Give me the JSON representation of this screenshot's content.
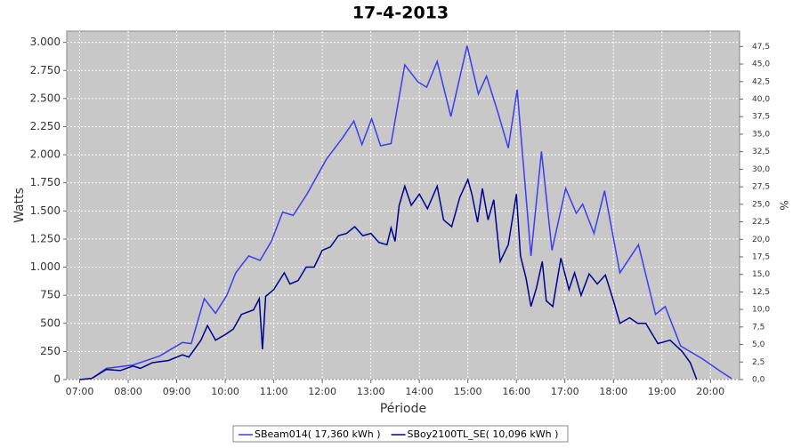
{
  "chart_data": {
    "type": "line",
    "title": "17-4-2013",
    "xlabel": "Période",
    "ylabel": "Watts",
    "y2label": "%",
    "xlim": [
      "06:44",
      "20:36"
    ],
    "xticks": [
      "07:00",
      "08:00",
      "09:00",
      "10:00",
      "11:00",
      "12:00",
      "13:00",
      "14:00",
      "15:00",
      "16:00",
      "17:00",
      "18:00",
      "19:00",
      "20:00"
    ],
    "ylim": [
      0,
      3100
    ],
    "yticks": [
      0,
      250,
      500,
      750,
      {
        "value": 1000,
        "label": "1.000"
      },
      {
        "value": 1250,
        "label": "1.250"
      },
      {
        "value": 1500,
        "label": "1.500"
      },
      {
        "value": 1750,
        "label": "1.750"
      },
      {
        "value": 2000,
        "label": "2.000"
      },
      {
        "value": 2250,
        "label": "2.250"
      },
      {
        "value": 2500,
        "label": "2.500"
      },
      {
        "value": 2750,
        "label": "2.750"
      },
      {
        "value": 3000,
        "label": "3.000"
      }
    ],
    "y2lim": [
      0,
      49.7
    ],
    "y2ticks": [
      {
        "value": 0,
        "label": "0,0"
      },
      {
        "value": 2.5,
        "label": "2,5"
      },
      {
        "value": 5,
        "label": "5,0"
      },
      {
        "value": 7.5,
        "label": "7,5"
      },
      {
        "value": 10,
        "label": "10,0"
      },
      {
        "value": 12.5,
        "label": "12,5"
      },
      {
        "value": 15,
        "label": "15,0"
      },
      {
        "value": 17.5,
        "label": "17,5"
      },
      {
        "value": 20,
        "label": "20,0"
      },
      {
        "value": 22.5,
        "label": "22,5"
      },
      {
        "value": 25,
        "label": "25,0"
      },
      {
        "value": 27.5,
        "label": "27,5"
      },
      {
        "value": 30,
        "label": "30,0"
      },
      {
        "value": 32.5,
        "label": "32,5"
      },
      {
        "value": 35,
        "label": "35,0"
      },
      {
        "value": 37.5,
        "label": "37,5"
      },
      {
        "value": 40,
        "label": "40,0"
      },
      {
        "value": 42.5,
        "label": "42,5"
      },
      {
        "value": 45,
        "label": "45,0"
      },
      {
        "value": 47.5,
        "label": "47,5"
      }
    ],
    "grid": true,
    "series": [
      {
        "name": "SBeam014( 17,360 kWh )",
        "color": "#3c3cf0",
        "x": [
          "07:00",
          "07:15",
          "07:33",
          "08:06",
          "08:39",
          "09:07",
          "09:18",
          "09:34",
          "09:48",
          "10:02",
          "10:13",
          "10:29",
          "10:43",
          "10:57",
          "11:11",
          "11:24",
          "11:41",
          "12:05",
          "12:25",
          "12:39",
          "12:49",
          "13:01",
          "13:12",
          "13:25",
          "13:42",
          "13:58",
          "14:09",
          "14:22",
          "14:39",
          "14:59",
          "15:13",
          "15:23",
          "15:37",
          "15:50",
          "16:01",
          "16:18",
          "16:31",
          "16:44",
          "17:01",
          "17:14",
          "17:22",
          "17:36",
          "17:49",
          "18:08",
          "18:31",
          "18:52",
          "19:04",
          "19:23",
          "19:51",
          "20:13",
          "20:26"
        ],
        "values": [
          0,
          10,
          100,
          130,
          210,
          330,
          320,
          720,
          590,
          750,
          950,
          1100,
          1060,
          1230,
          1490,
          1460,
          1650,
          1960,
          2150,
          2300,
          2090,
          2320,
          2080,
          2100,
          2800,
          2650,
          2600,
          2830,
          2340,
          2970,
          2540,
          2700,
          2380,
          2060,
          2580,
          1100,
          2030,
          1150,
          1700,
          1480,
          1560,
          1300,
          1680,
          950,
          1200,
          580,
          650,
          300,
          180,
          70,
          10
        ]
      },
      {
        "name": "SBoy2100TL_SE( 10,096 kWh )",
        "color": "#000090",
        "x": [
          "07:00",
          "07:15",
          "07:33",
          "07:50",
          "08:06",
          "08:15",
          "08:30",
          "08:50",
          "09:07",
          "09:15",
          "09:30",
          "09:38",
          "09:48",
          "10:00",
          "10:10",
          "10:20",
          "10:35",
          "10:42",
          "10:46",
          "10:50",
          "11:00",
          "11:13",
          "11:20",
          "11:30",
          "11:40",
          "11:50",
          "12:00",
          "12:10",
          "12:20",
          "12:30",
          "12:40",
          "12:50",
          "13:00",
          "13:10",
          "13:20",
          "13:25",
          "13:30",
          "13:35",
          "13:42",
          "13:50",
          "14:00",
          "14:10",
          "14:22",
          "14:30",
          "14:40",
          "14:50",
          "15:00",
          "15:05",
          "15:12",
          "15:18",
          "15:25",
          "15:32",
          "15:40",
          "15:50",
          "16:00",
          "16:05",
          "16:12",
          "16:18",
          "16:25",
          "16:32",
          "16:37",
          "16:45",
          "16:55",
          "17:05",
          "17:12",
          "17:20",
          "17:30",
          "17:40",
          "17:50",
          "18:00",
          "18:08",
          "18:20",
          "18:30",
          "18:40",
          "18:55",
          "19:10",
          "19:25",
          "19:35",
          "19:43"
        ],
        "values": [
          0,
          10,
          90,
          80,
          120,
          100,
          150,
          170,
          220,
          200,
          350,
          480,
          350,
          400,
          450,
          580,
          620,
          720,
          270,
          740,
          800,
          950,
          850,
          880,
          1000,
          1000,
          1150,
          1180,
          1280,
          1300,
          1360,
          1280,
          1300,
          1220,
          1200,
          1350,
          1230,
          1550,
          1720,
          1550,
          1650,
          1520,
          1720,
          1420,
          1360,
          1620,
          1780,
          1650,
          1400,
          1700,
          1420,
          1600,
          1050,
          1200,
          1650,
          1100,
          900,
          650,
          820,
          1050,
          700,
          650,
          1080,
          800,
          950,
          750,
          940,
          850,
          930,
          700,
          500,
          550,
          500,
          500,
          320,
          350,
          250,
          150,
          0
        ]
      }
    ]
  }
}
